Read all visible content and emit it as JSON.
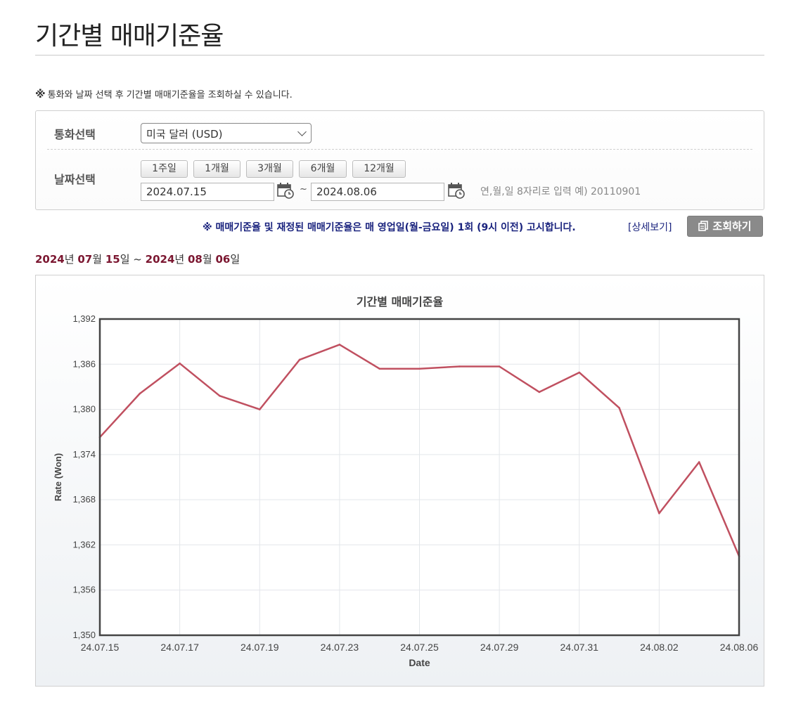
{
  "page": {
    "title": "기간별 매매기준율"
  },
  "notice": {
    "mark": "※",
    "text": "통화와 날짜 선택 후 기간별 매매기준율을 조회하실 수 있습니다."
  },
  "search": {
    "currency_label": "통화선택",
    "currency_value": "미국 달러 (USD)",
    "date_label": "날짜선택",
    "period_buttons": [
      "1주일",
      "1개월",
      "3개월",
      "6개월",
      "12개월"
    ],
    "start_date": "2024.07.15",
    "end_date": "2024.08.06",
    "tilde": "~",
    "date_hint": "연,월,일 8자리로 입력 예) 20110901"
  },
  "info": {
    "notice": "※ 매매기준율 및 재정된 매매기준율은 매 영업일(월-금요일) 1회 (9시 이전) 고시합니다.",
    "detail_link": "[상세보기]",
    "query_button": "조회하기"
  },
  "range": {
    "start_year": "2024",
    "start_month": "07",
    "start_day": "15",
    "end_year": "2024",
    "end_month": "08",
    "end_day": "06",
    "year_unit": "년",
    "month_unit": "월",
    "day_unit": "일",
    "sep": "~"
  },
  "chart_data": {
    "type": "line",
    "title": "기간별 매매기준율",
    "xlabel": "Date",
    "ylabel": "Rate (Won)",
    "ylim": [
      1350,
      1392
    ],
    "yticks": [
      1350,
      1356,
      1362,
      1368,
      1374,
      1380,
      1386,
      1392
    ],
    "ytick_labels": [
      "1,350",
      "1,356",
      "1,362",
      "1,368",
      "1,374",
      "1,380",
      "1,386",
      "1,392"
    ],
    "x": [
      "24.07.15",
      "24.07.16",
      "24.07.17",
      "24.07.18",
      "24.07.19",
      "24.07.22",
      "24.07.23",
      "24.07.24",
      "24.07.25",
      "24.07.26",
      "24.07.29",
      "24.07.30",
      "24.07.31",
      "24.08.01",
      "24.08.02",
      "24.08.05",
      "24.08.06"
    ],
    "xtick_labels": [
      "24.07.15",
      "24.07.17",
      "24.07.19",
      "24.07.23",
      "24.07.25",
      "24.07.29",
      "24.07.31",
      "24.08.02",
      "24.08.06"
    ],
    "series": [
      {
        "values": [
          1376.3,
          1382.1,
          1386.1,
          1381.8,
          1380.0,
          1386.6,
          1388.6,
          1385.4,
          1385.4,
          1385.7,
          1385.7,
          1382.3,
          1384.9,
          1380.2,
          1366.2,
          1373.0,
          1360.5
        ],
        "color": "#c05060"
      }
    ],
    "grid": true,
    "line_color": "#c05060",
    "axis_color": "#444444",
    "grid_color": "#e3e6ea"
  }
}
